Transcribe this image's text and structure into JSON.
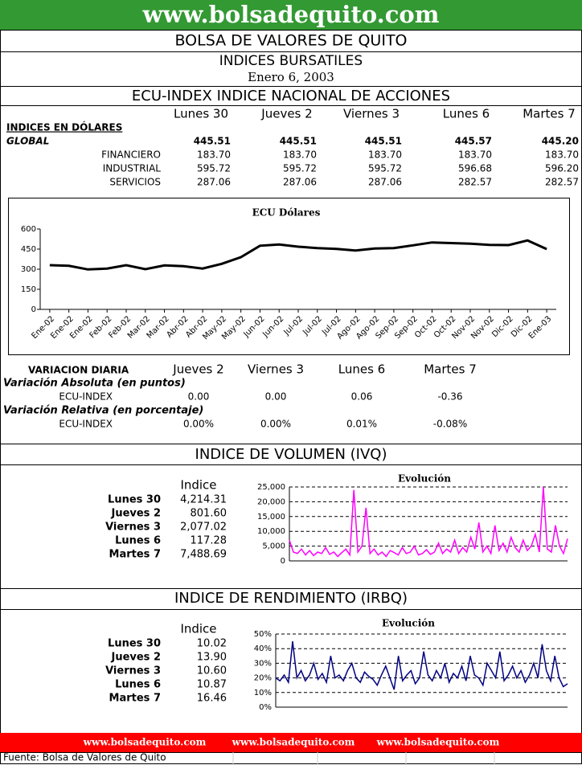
{
  "header": {
    "site": "www.bolsadequito.com",
    "title": "BOLSA DE VALORES DE QUITO",
    "subtitle": "INDICES BURSATILES",
    "date": "Enero 6, 2003"
  },
  "ecu": {
    "title": "ECU-INDEX  INDICE NACIONAL DE ACCIONES",
    "days": [
      "Lunes 30",
      "Jueves 2",
      "Viernes 3",
      "Lunes 6",
      "Martes 7"
    ],
    "section": "INDICES EN DÓLARES",
    "rows": [
      {
        "label": "GLOBAL",
        "values": [
          "445.51",
          "445.51",
          "445.51",
          "445.57",
          "445.20"
        ]
      },
      {
        "label": "FINANCIERO",
        "values": [
          "183.70",
          "183.70",
          "183.70",
          "183.70",
          "183.70"
        ]
      },
      {
        "label": "INDUSTRIAL",
        "values": [
          "595.72",
          "595.72",
          "595.72",
          "596.68",
          "596.20"
        ]
      },
      {
        "label": "SERVICIOS",
        "values": [
          "287.06",
          "287.06",
          "287.06",
          "282.57",
          "282.57"
        ]
      }
    ]
  },
  "ecu_chart": {
    "type": "line",
    "title": "ECU Dólares",
    "categories": [
      "Ene-02",
      "Ene-02",
      "Ene-02",
      "Feb-02",
      "Feb-02",
      "Mar-02",
      "Mar-02",
      "Abr-02",
      "Abr-02",
      "May-02",
      "May-02",
      "Jun-02",
      "Jun-02",
      "Jul-02",
      "Jul-02",
      "Jul-02",
      "Ago-02",
      "Ago-02",
      "Sep-02",
      "Sep-02",
      "Oct-02",
      "Oct-02",
      "Nov-02",
      "Nov-02",
      "Dic-02",
      "Dic-02",
      "Ene-03"
    ],
    "series": [
      {
        "name": "ECU Dólares",
        "color": "#000000",
        "values": [
          330,
          325,
          298,
          305,
          330,
          300,
          328,
          322,
          305,
          340,
          390,
          475,
          485,
          468,
          458,
          452,
          440,
          455,
          458,
          478,
          500,
          495,
          490,
          482,
          480,
          515,
          450
        ]
      }
    ],
    "ylim": [
      0,
      600
    ],
    "yticks": [
      0,
      150,
      300,
      450,
      600
    ],
    "grid": false
  },
  "variacion": {
    "title": "VARIACION DIARIA",
    "days": [
      "Jueves 2",
      "Viernes 3",
      "Lunes 6",
      "Martes 7"
    ],
    "absoluta": {
      "title": "Variación Absoluta (en puntos)",
      "label": "ECU-INDEX",
      "values": [
        "0.00",
        "0.00",
        "0.06",
        "-0.36"
      ]
    },
    "relativa": {
      "title": "Variación Relativa (en porcentaje)",
      "label": "ECU-INDEX",
      "values": [
        "0.00%",
        "0.00%",
        "0.01%",
        "-0.08%"
      ]
    }
  },
  "volumen": {
    "title": "INDICE DE VOLUMEN (IVQ)",
    "column": "Indice",
    "rows": [
      {
        "label": "Lunes 30",
        "value": "4,214.31"
      },
      {
        "label": "Jueves 2",
        "value": "801.60"
      },
      {
        "label": "Viernes 3",
        "value": "2,077.02"
      },
      {
        "label": "Lunes 6",
        "value": "117.28"
      },
      {
        "label": "Martes 7",
        "value": "7,488.69"
      }
    ],
    "chart": {
      "type": "line",
      "title": "Evolución",
      "series": [
        {
          "name": "IVQ",
          "color": "#ff00ff",
          "values": [
            7000,
            3000,
            2500,
            4000,
            2000,
            3500,
            1800,
            3000,
            2500,
            4500,
            2200,
            3000,
            1500,
            2800,
            4000,
            2000,
            24000,
            3000,
            5000,
            18000,
            2500,
            4000,
            2000,
            3000,
            1500,
            3500,
            2800,
            2000,
            4500,
            2500,
            3000,
            5000,
            2000,
            2500,
            3800,
            2200,
            3000,
            6000,
            2500,
            4000,
            3000,
            7000,
            2500,
            4500,
            3000,
            8000,
            4000,
            13000,
            3000,
            5000,
            2500,
            12000,
            3500,
            6000,
            3000,
            8000,
            4500,
            3000,
            7000,
            3500,
            5000,
            9000,
            3000,
            25000,
            4000,
            3000,
            12000,
            5000,
            2500,
            7500
          ]
        }
      ],
      "ylim": [
        0,
        25000
      ],
      "yticks": [
        0,
        {
          "value": 5000,
          "label": "5,000"
        },
        {
          "value": 10000,
          "label": "10,000"
        },
        {
          "value": 15000,
          "label": "15,000"
        },
        {
          "value": 20000,
          "label": "20,000"
        },
        {
          "value": 25000,
          "label": "25,000"
        }
      ],
      "grid": true
    }
  },
  "rendimiento": {
    "title": "INDICE DE RENDIMIENTO (IRBQ)",
    "column": "Indice",
    "rows": [
      {
        "label": "Lunes 30",
        "value": "10.02"
      },
      {
        "label": "Jueves 2",
        "value": "13.90"
      },
      {
        "label": "Viernes 3",
        "value": "10.60"
      },
      {
        "label": "Lunes 6",
        "value": "10.87"
      },
      {
        "label": "Martes 7",
        "value": "16.46"
      }
    ],
    "chart": {
      "type": "line",
      "title": "Evolución",
      "series": [
        {
          "name": "IRBQ",
          "color": "#000080",
          "values": [
            20,
            18,
            22,
            17,
            45,
            20,
            25,
            18,
            22,
            30,
            19,
            23,
            17,
            35,
            20,
            22,
            18,
            25,
            30,
            20,
            17,
            24,
            21,
            19,
            15,
            22,
            28,
            20,
            12,
            35,
            18,
            22,
            25,
            16,
            20,
            38,
            22,
            18,
            25,
            20,
            30,
            17,
            23,
            20,
            28,
            18,
            35,
            22,
            20,
            15,
            30,
            25,
            20,
            38,
            18,
            22,
            28,
            20,
            25,
            17,
            22,
            30,
            20,
            43,
            25,
            18,
            35,
            20,
            14,
            16
          ]
        }
      ],
      "ylim": [
        0,
        50
      ],
      "yticks": [
        {
          "value": 0,
          "label": "0%"
        },
        {
          "value": 10,
          "label": "10%"
        },
        {
          "value": 20,
          "label": "20%"
        },
        {
          "value": 30,
          "label": "30%"
        },
        {
          "value": 40,
          "label": "40%"
        },
        {
          "value": 50,
          "label": "50%"
        }
      ],
      "grid": true
    }
  },
  "footer": {
    "links": [
      "www.bolsadequito.com",
      "www.bolsadequito.com",
      "www.bolsadequito.com"
    ],
    "source": "Fuente: Bolsa de Valores de Quito"
  }
}
